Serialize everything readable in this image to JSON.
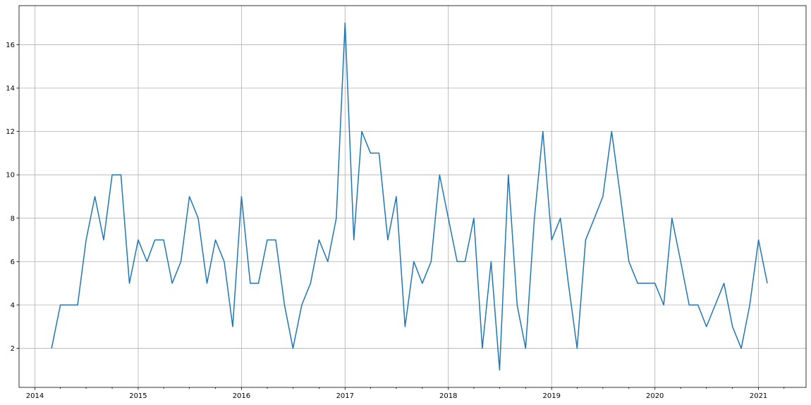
{
  "chart_data": {
    "type": "line",
    "title": "",
    "xlabel": "",
    "ylabel": "",
    "grid": true,
    "line_color": "#1f77b4",
    "xlim": [
      "2013-11-06",
      "2021-06-18"
    ],
    "ylim": [
      0.2,
      17.8
    ],
    "x_ticks": [
      {
        "date": "2014-01-01",
        "label": "2014"
      },
      {
        "date": "2015-01-01",
        "label": "2015"
      },
      {
        "date": "2016-01-01",
        "label": "2016"
      },
      {
        "date": "2017-01-01",
        "label": "2017"
      },
      {
        "date": "2018-01-01",
        "label": "2018"
      },
      {
        "date": "2019-01-01",
        "label": "2019"
      },
      {
        "date": "2020-01-01",
        "label": "2020"
      },
      {
        "date": "2021-01-01",
        "label": "2021"
      }
    ],
    "y_ticks": [
      2,
      4,
      6,
      8,
      10,
      12,
      14,
      16
    ],
    "x": [
      "2014-03-01",
      "2014-04-01",
      "2014-05-01",
      "2014-06-01",
      "2014-07-01",
      "2014-08-01",
      "2014-09-01",
      "2014-10-01",
      "2014-11-01",
      "2014-12-01",
      "2015-01-01",
      "2015-02-01",
      "2015-03-01",
      "2015-04-01",
      "2015-05-01",
      "2015-06-01",
      "2015-07-01",
      "2015-08-01",
      "2015-09-01",
      "2015-10-01",
      "2015-11-01",
      "2015-12-01",
      "2016-01-01",
      "2016-02-01",
      "2016-03-01",
      "2016-04-01",
      "2016-05-01",
      "2016-06-01",
      "2016-07-01",
      "2016-08-01",
      "2016-09-01",
      "2016-10-01",
      "2016-11-01",
      "2016-12-01",
      "2017-01-01",
      "2017-02-01",
      "2017-03-01",
      "2017-04-01",
      "2017-05-01",
      "2017-06-01",
      "2017-07-01",
      "2017-08-01",
      "2017-09-01",
      "2017-10-01",
      "2017-11-01",
      "2017-12-01",
      "2018-01-01",
      "2018-02-01",
      "2018-03-01",
      "2018-04-01",
      "2018-05-01",
      "2018-06-01",
      "2018-07-01",
      "2018-08-01",
      "2018-09-01",
      "2018-10-01",
      "2018-11-01",
      "2018-12-01",
      "2019-01-01",
      "2019-02-01",
      "2019-03-01",
      "2019-04-01",
      "2019-05-01",
      "2019-06-01",
      "2019-07-01",
      "2019-08-01",
      "2019-09-01",
      "2019-10-01",
      "2019-11-01",
      "2019-12-01",
      "2020-01-01",
      "2020-02-01",
      "2020-03-01",
      "2020-04-01",
      "2020-05-01",
      "2020-06-01",
      "2020-07-01",
      "2020-08-01",
      "2020-09-01",
      "2020-10-01",
      "2020-11-01",
      "2020-12-01",
      "2021-01-01",
      "2021-02-01"
    ],
    "values": [
      2,
      4,
      4,
      4,
      7,
      9,
      7,
      10,
      10,
      5,
      7,
      6,
      7,
      7,
      5,
      6,
      9,
      8,
      5,
      7,
      6,
      3,
      9,
      5,
      5,
      7,
      7,
      4,
      2,
      4,
      5,
      7,
      6,
      8,
      17,
      7,
      12,
      11,
      11,
      7,
      9,
      3,
      6,
      5,
      6,
      10,
      8,
      6,
      6,
      8,
      2,
      6,
      1,
      10,
      4,
      2,
      8,
      12,
      7,
      8,
      5,
      2,
      7,
      8,
      9,
      12,
      9,
      6,
      5,
      5,
      5,
      4,
      8,
      6,
      4,
      4,
      3,
      4,
      5,
      3,
      2,
      4,
      7,
      5
    ]
  }
}
